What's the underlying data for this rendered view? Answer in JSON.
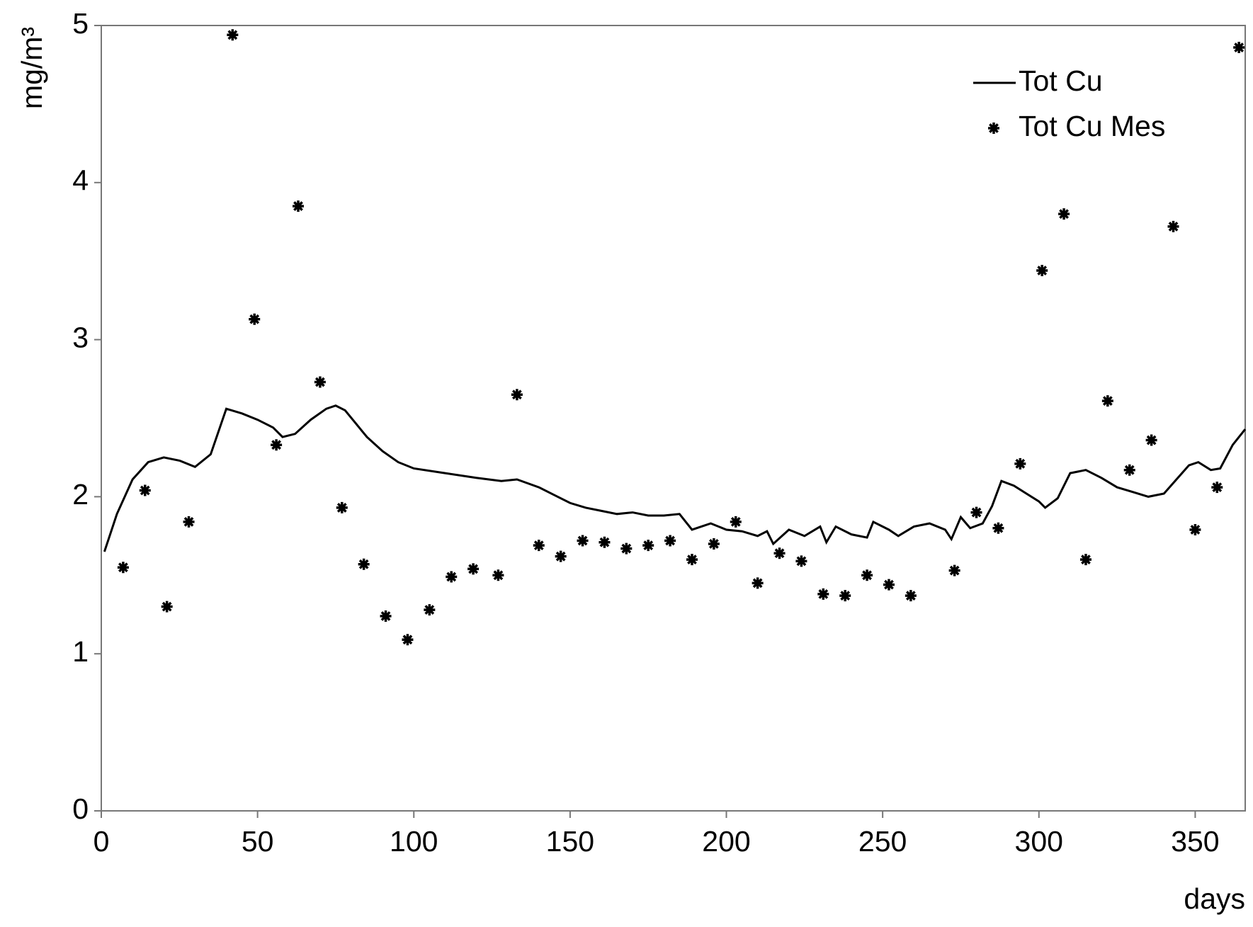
{
  "chart_data": {
    "type": "line",
    "xlabel": "days",
    "ylabel": "mg/m³",
    "xlim": [
      0,
      366
    ],
    "xticks": [
      0,
      50,
      100,
      150,
      200,
      250,
      300,
      350
    ],
    "ylim": [
      0,
      5
    ],
    "yticks": [
      0,
      1,
      2,
      3,
      4,
      5
    ],
    "legend": "upper right",
    "series": [
      {
        "name": "Tot Cu",
        "color": "#000000",
        "style": "line",
        "x": [
          1,
          5,
          10,
          15,
          20,
          25,
          30,
          35,
          40,
          45,
          50,
          55,
          58,
          62,
          67,
          72,
          75,
          78,
          85,
          90,
          95,
          100,
          110,
          120,
          128,
          133,
          140,
          145,
          150,
          155,
          160,
          165,
          170,
          175,
          180,
          185,
          189,
          195,
          200,
          205,
          210,
          213,
          215,
          220,
          225,
          230,
          232,
          235,
          240,
          245,
          247,
          252,
          255,
          260,
          265,
          270,
          272,
          275,
          278,
          282,
          285,
          288,
          292,
          296,
          300,
          302,
          306,
          310,
          315,
          320,
          325,
          330,
          335,
          340,
          344,
          348,
          351,
          355,
          358,
          362,
          366
        ],
        "y": [
          1.65,
          1.89,
          2.11,
          2.22,
          2.25,
          2.23,
          2.19,
          2.27,
          2.56,
          2.53,
          2.49,
          2.44,
          2.38,
          2.4,
          2.49,
          2.56,
          2.58,
          2.55,
          2.38,
          2.29,
          2.22,
          2.18,
          2.15,
          2.12,
          2.1,
          2.11,
          2.06,
          2.01,
          1.96,
          1.93,
          1.91,
          1.89,
          1.9,
          1.88,
          1.88,
          1.89,
          1.79,
          1.83,
          1.79,
          1.78,
          1.75,
          1.78,
          1.7,
          1.79,
          1.75,
          1.81,
          1.71,
          1.81,
          1.76,
          1.74,
          1.84,
          1.79,
          1.75,
          1.81,
          1.83,
          1.79,
          1.73,
          1.87,
          1.8,
          1.83,
          1.94,
          2.1,
          2.07,
          2.02,
          1.97,
          1.93,
          1.99,
          2.15,
          2.17,
          2.12,
          2.06,
          2.03,
          2.0,
          2.02,
          2.11,
          2.2,
          2.22,
          2.17,
          2.18,
          2.33,
          2.43
        ]
      },
      {
        "name": "Tot Cu Mes",
        "color": "#000000",
        "style": "marker",
        "x": [
          7,
          14,
          21,
          28,
          42,
          49,
          56,
          63,
          70,
          77,
          84,
          91,
          98,
          105,
          112,
          119,
          127,
          133,
          140,
          147,
          154,
          161,
          168,
          175,
          182,
          189,
          196,
          203,
          210,
          217,
          224,
          231,
          238,
          245,
          252,
          259,
          273,
          280,
          287,
          294,
          301,
          308,
          315,
          322,
          329,
          336,
          343,
          350,
          357,
          364
        ],
        "y": [
          1.55,
          2.04,
          1.3,
          1.84,
          4.94,
          3.13,
          2.33,
          3.85,
          2.73,
          1.93,
          1.57,
          1.24,
          1.09,
          1.28,
          1.49,
          1.54,
          1.5,
          2.65,
          1.69,
          1.62,
          1.72,
          1.71,
          1.67,
          1.69,
          1.72,
          1.6,
          1.7,
          1.84,
          1.45,
          1.64,
          1.59,
          1.38,
          1.37,
          1.5,
          1.44,
          1.37,
          1.53,
          1.9,
          1.8,
          2.21,
          3.44,
          3.8,
          1.6,
          2.61,
          2.17,
          2.36,
          3.72,
          1.79,
          2.06,
          4.86
        ]
      }
    ]
  }
}
